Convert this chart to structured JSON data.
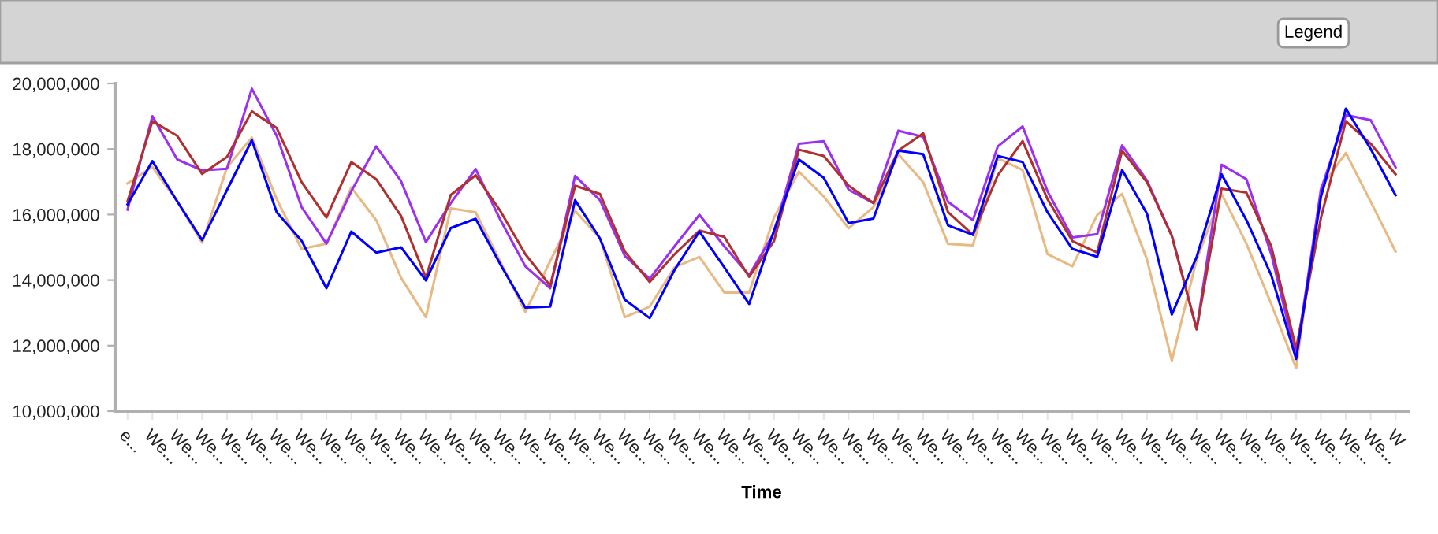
{
  "chart_data": {
    "type": "line",
    "categories": [
      "e...",
      "We...",
      "We...",
      "We...",
      "We...",
      "We...",
      "We...",
      "We...",
      "We...",
      "We...",
      "We...",
      "We...",
      "We...",
      "We...",
      "We...",
      "We...",
      "We...",
      "We...",
      "We...",
      "We...",
      "We...",
      "We...",
      "We...",
      "We...",
      "We...",
      "We...",
      "We...",
      "We...",
      "We...",
      "We...",
      "We...",
      "We...",
      "We...",
      "We...",
      "We...",
      "We...",
      "We...",
      "We...",
      "We...",
      "We...",
      "We...",
      "We...",
      "We...",
      "We...",
      "We...",
      "We...",
      "We...",
      "We...",
      "We...",
      "We...",
      "We...",
      "W"
    ],
    "xlabel": "Time",
    "annotations": [
      "Legend"
    ],
    "series": [
      {
        "color": "#e8b982",
        "values": [
          16950000,
          17450000,
          16400000,
          15140000,
          17440000,
          18350000,
          16470000,
          14950000,
          15110000,
          16830000,
          15830000,
          14070000,
          12870000,
          16190000,
          16070000,
          14550000,
          13030000,
          14580000,
          16120000,
          15270000,
          12870000,
          13190000,
          14390000,
          14710000,
          13620000,
          13620000,
          15910000,
          17310000,
          16550000,
          15580000,
          16230000,
          17840000,
          16990000,
          15100000,
          15060000,
          17720000,
          17360000,
          14790000,
          14420000,
          15990000,
          16630000,
          14630000,
          11540000,
          14630000,
          16630000,
          15110000,
          13270000,
          11310000,
          16830000,
          17880000,
          16390000,
          14870000
        ]
      },
      {
        "color": "#9b30f0",
        "values": [
          16150000,
          19000000,
          17680000,
          17350000,
          17400000,
          19840000,
          18400000,
          16230000,
          15110000,
          16710000,
          18080000,
          17020000,
          15160000,
          16350000,
          17390000,
          15830000,
          14420000,
          13750000,
          17180000,
          16440000,
          14740000,
          14040000,
          15030000,
          15990000,
          15030000,
          14150000,
          15430000,
          18160000,
          18240000,
          16760000,
          16350000,
          18560000,
          18370000,
          16390000,
          15830000,
          18080000,
          18690000,
          16710000,
          15300000,
          15400000,
          18110000,
          17040000,
          15350000,
          12500000,
          17520000,
          17080000,
          14790000,
          11670000,
          16760000,
          19040000,
          18880000,
          17440000
        ]
      },
      {
        "color": "#b03030",
        "values": [
          16400000,
          18850000,
          18400000,
          17240000,
          17760000,
          19150000,
          18640000,
          16990000,
          15910000,
          17600000,
          17080000,
          15960000,
          14070000,
          16600000,
          17200000,
          16100000,
          14790000,
          13830000,
          16880000,
          16630000,
          14870000,
          13940000,
          14790000,
          15510000,
          15320000,
          14100000,
          15190000,
          17980000,
          17790000,
          16880000,
          16350000,
          17950000,
          18480000,
          16070000,
          15380000,
          17200000,
          18240000,
          16470000,
          15190000,
          14840000,
          17950000,
          16990000,
          15350000,
          12500000,
          16790000,
          16670000,
          15030000,
          11910000,
          15910000,
          18850000,
          18160000,
          17230000
        ]
      },
      {
        "color": "#0000ff",
        "values": [
          16310000,
          17630000,
          16400000,
          15220000,
          16750000,
          18270000,
          16070000,
          15200000,
          13750000,
          15480000,
          14840000,
          15000000,
          13990000,
          15590000,
          15870000,
          14470000,
          13160000,
          13190000,
          16440000,
          15270000,
          13400000,
          12840000,
          14310000,
          15480000,
          14390000,
          13270000,
          15510000,
          17680000,
          17120000,
          15740000,
          15880000,
          17950000,
          17840000,
          15670000,
          15380000,
          17790000,
          17600000,
          16070000,
          14950000,
          14710000,
          17360000,
          16030000,
          12950000,
          14710000,
          17230000,
          15830000,
          14150000,
          11590000,
          16550000,
          19230000,
          18000000,
          16590000
        ]
      }
    ],
    "ylim": [
      10000000,
      20000000
    ],
    "yticks": [
      {
        "value": 10000000,
        "label": "10,000,000"
      },
      {
        "value": 12000000,
        "label": "12,000,000"
      },
      {
        "value": 14000000,
        "label": "14,000,000"
      },
      {
        "value": 16000000,
        "label": "16,000,000"
      },
      {
        "value": 18000000,
        "label": "18,000,000"
      },
      {
        "value": 20000000,
        "label": "20,000,000"
      }
    ],
    "grid": false,
    "marker": "none",
    "line_style": "solid"
  }
}
